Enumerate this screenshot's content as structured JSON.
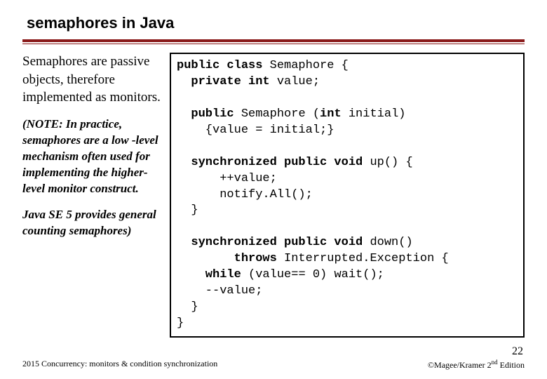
{
  "title": "semaphores in Java",
  "rule": {
    "thick_color": "#8a1a1a",
    "thin_color": "#8a1a1a"
  },
  "left": {
    "para1_a": "Semaphores are passive objects, therefore implemented as ",
    "para1_b": "monitors",
    "para1_c": ".",
    "note": "(NOTE: In practice, semaphores are a low -level mechanism often used for implementing the higher-level monitor construct.",
    "note2": "Java SE 5 provides general counting semaphores)"
  },
  "code": {
    "l1a": "public class ",
    "l1b": "Semaphore {",
    "l2a": "  private int ",
    "l2b": "value;",
    "blank1": "",
    "l3a": "  public ",
    "l3b": "Semaphore (",
    "l3c": "int ",
    "l3d": "initial)",
    "l4": "    {value = initial;}",
    "blank2": "",
    "l5a": "  synchronized public void ",
    "l5b": "up() {",
    "l6": "      ++value;",
    "l7": "      notify.All();",
    "l8": "  }",
    "blank3": "",
    "l9a": "  synchronized public void ",
    "l9b": "down()",
    "l10a": "        throws ",
    "l10b": "Interrupted.Exception {",
    "l11a": "    while ",
    "l11b": "(value== 0) wait();",
    "l12": "    --value;",
    "l13": "  }",
    "l14": "}"
  },
  "slidenum": "22",
  "footer": {
    "left": "2015  Concurrency: monitors & condition synchronization",
    "right_a": "©Magee/Kramer ",
    "right_b": "2",
    "right_c": "nd",
    "right_d": " Edition"
  }
}
